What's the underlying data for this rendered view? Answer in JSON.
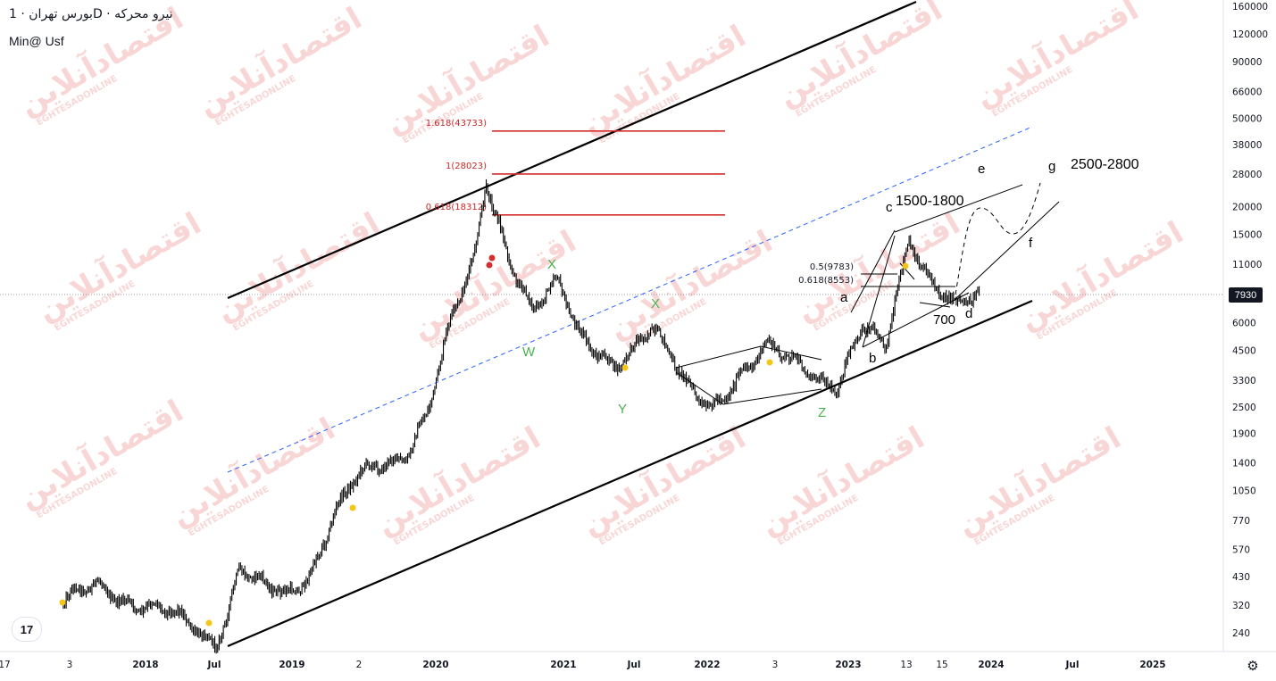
{
  "header": {
    "title": "بورس تهران · 1D · نیرو محرکه",
    "subtitle": "Min@ Usf"
  },
  "watermark": {
    "text": "اقتصادآنلاین",
    "subtext": "EGHTESADONLINE"
  },
  "last_price": "7930",
  "chart_data": {
    "type": "line",
    "title": "",
    "y_scale": "log",
    "ylim": [
      200,
      165000
    ],
    "y_ticks": [
      160000,
      120000,
      90000,
      66000,
      50000,
      38000,
      28000,
      20000,
      15000,
      11000,
      8000,
      6000,
      4500,
      3300,
      2500,
      1900,
      1400,
      1050,
      770,
      570,
      430,
      320,
      240
    ],
    "x_ticks": [
      "17",
      "3",
      "2018",
      "Jul",
      "2019",
      "2",
      "2020",
      "2021",
      "Jul",
      "2022",
      "3",
      "2023",
      "13",
      "15",
      "2024",
      "Jul",
      "2025"
    ],
    "price_path": [
      {
        "date": "2017-06",
        "price": 320
      },
      {
        "date": "2017-09",
        "price": 400
      },
      {
        "date": "2017-12",
        "price": 330
      },
      {
        "date": "2018-03",
        "price": 290
      },
      {
        "date": "2018-06",
        "price": 235
      },
      {
        "date": "2018-07",
        "price": 225
      },
      {
        "date": "2018-08",
        "price": 310
      },
      {
        "date": "2018-09",
        "price": 480
      },
      {
        "date": "2018-11",
        "price": 380
      },
      {
        "date": "2019-01",
        "price": 340
      },
      {
        "date": "2019-03",
        "price": 450
      },
      {
        "date": "2019-05",
        "price": 850
      },
      {
        "date": "2019-07",
        "price": 1200
      },
      {
        "date": "2019-09",
        "price": 1300
      },
      {
        "date": "2019-11",
        "price": 1500
      },
      {
        "date": "2020-01",
        "price": 2500
      },
      {
        "date": "2020-03",
        "price": 6000
      },
      {
        "date": "2020-05",
        "price": 11000
      },
      {
        "date": "2020-06",
        "price": 25000
      },
      {
        "date": "2020-08",
        "price": 12000
      },
      {
        "date": "2020-10",
        "price": 7000
      },
      {
        "date": "2020-12",
        "price": 9000
      },
      {
        "date": "2021-02",
        "price": 5000
      },
      {
        "date": "2021-05",
        "price": 4000
      },
      {
        "date": "2021-08",
        "price": 5500
      },
      {
        "date": "2021-11",
        "price": 3200
      },
      {
        "date": "2022-01",
        "price": 2600
      },
      {
        "date": "2022-04",
        "price": 3500
      },
      {
        "date": "2022-06",
        "price": 4500
      },
      {
        "date": "2022-09",
        "price": 4000
      },
      {
        "date": "2022-12",
        "price": 3000
      },
      {
        "date": "2023-02",
        "price": 5500
      },
      {
        "date": "2023-04",
        "price": 4800
      },
      {
        "date": "2023-06",
        "price": 15000
      },
      {
        "date": "2023-08",
        "price": 9000
      },
      {
        "date": "2023-10",
        "price": 6800
      },
      {
        "date": "2023-12",
        "price": 7930
      }
    ],
    "fib_levels": [
      {
        "label": "1.618(43733)",
        "price": 43733
      },
      {
        "label": "1(28023)",
        "price": 28023
      },
      {
        "label": "0.618(18312)",
        "price": 18312
      }
    ],
    "minor_fib_levels": [
      {
        "label": "0.5(9783)",
        "price": 9783
      },
      {
        "label": "0.618(8553)",
        "price": 8553
      }
    ],
    "wave_labels_green": [
      "X",
      "W",
      "X",
      "Y",
      "Z"
    ],
    "wave_labels_black": [
      "a",
      "b",
      "c",
      "d",
      "e",
      "f",
      "g"
    ],
    "annotations": [
      "1500-1800",
      "2500-2800",
      "700"
    ]
  },
  "colors": {
    "fib_line": "#d32f2f",
    "fib_text": "#c62828",
    "wave_green": "#4caf50",
    "trend_dash": "#2962ff",
    "watermark": "#f8cfcf",
    "candle": "#000000"
  }
}
